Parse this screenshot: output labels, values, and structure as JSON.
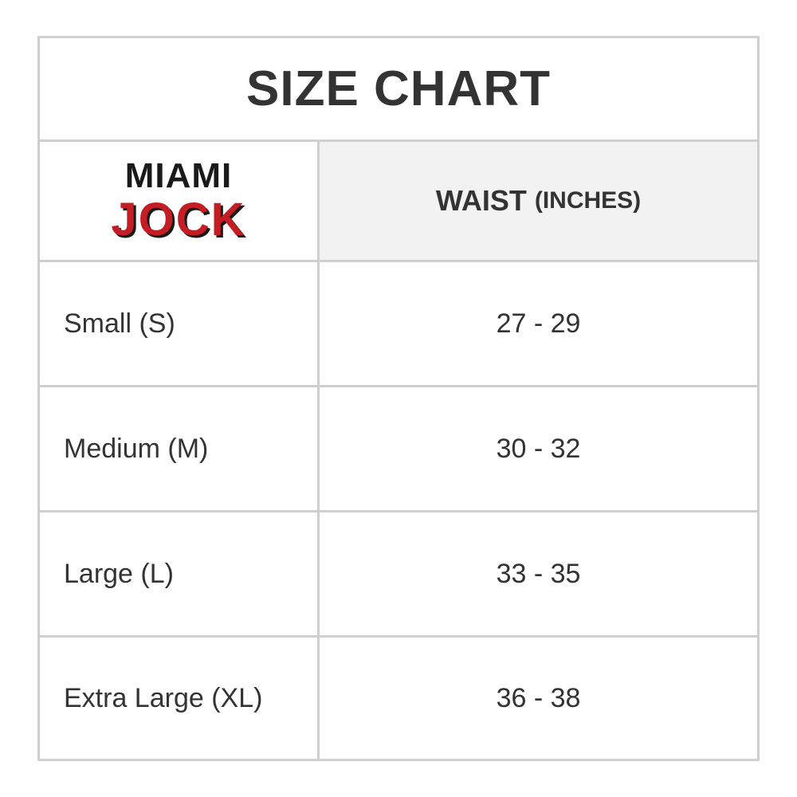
{
  "title": "SIZE CHART",
  "logo": {
    "line1": "MIAMI",
    "line2": "JOCK",
    "colors": {
      "red": "#c41e24",
      "black": "#1a1a1a"
    }
  },
  "header": {
    "label": "WAIST",
    "unit": "(INCHES)"
  },
  "rows": [
    {
      "size": "Small (S)",
      "waist": "27 - 29"
    },
    {
      "size": "Medium (M)",
      "waist": "30 - 32"
    },
    {
      "size": "Large (L)",
      "waist": "33 - 35"
    },
    {
      "size": "Extra Large (XL)",
      "waist": "36 - 38"
    }
  ]
}
